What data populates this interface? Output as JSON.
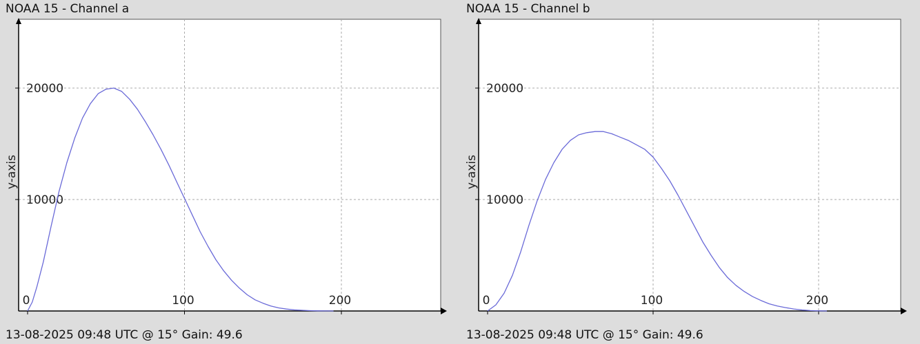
{
  "colors": {
    "background": "#dddddd",
    "plot_background": "#ffffff",
    "grid": "#aaaaaa",
    "axis": "#000000",
    "series": "#6a6ad8"
  },
  "chart_data": [
    {
      "type": "line",
      "title": "NOAA 15 - Channel a",
      "footer": "13-08-2025 09:48 UTC @ 15° Gain: 49.6",
      "xlabel": "",
      "ylabel": "y-axis",
      "xlim": [
        0,
        250
      ],
      "ylim": [
        0,
        26000
      ],
      "xticks": [
        0,
        100,
        200
      ],
      "yticks": [
        10000,
        20000
      ],
      "grid": true,
      "legend": "none",
      "series": [
        {
          "x": [
            0,
            3,
            6,
            10,
            15,
            20,
            25,
            30,
            35,
            40,
            45,
            50,
            55,
            60,
            65,
            70,
            75,
            80,
            85,
            90,
            95,
            100,
            105,
            110,
            115,
            120,
            125,
            130,
            135,
            140,
            145,
            150,
            155,
            160,
            165,
            170,
            175,
            180,
            185,
            190,
            195
          ],
          "y": [
            0,
            800,
            2200,
            4400,
            7600,
            10700,
            13300,
            15500,
            17300,
            18600,
            19500,
            19900,
            20000,
            19700,
            19000,
            18100,
            17000,
            15800,
            14500,
            13100,
            11600,
            10100,
            8600,
            7100,
            5800,
            4600,
            3600,
            2750,
            2050,
            1450,
            1000,
            700,
            450,
            280,
            170,
            100,
            60,
            30,
            15,
            5,
            0
          ]
        }
      ]
    },
    {
      "type": "line",
      "title": "NOAA 15 - Channel b",
      "footer": "13-08-2025 09:48 UTC @ 15° Gain: 49.6",
      "xlabel": "",
      "ylabel": "y-axis",
      "xlim": [
        0,
        255
      ],
      "ylim": [
        0,
        26000
      ],
      "xticks": [
        0,
        100,
        200
      ],
      "yticks": [
        10000,
        20000
      ],
      "grid": true,
      "legend": "none",
      "series": [
        {
          "x": [
            0,
            5,
            10,
            15,
            20,
            25,
            30,
            35,
            40,
            45,
            50,
            55,
            60,
            65,
            70,
            75,
            80,
            85,
            90,
            95,
            100,
            105,
            110,
            115,
            120,
            125,
            130,
            135,
            140,
            145,
            150,
            155,
            160,
            165,
            170,
            175,
            180,
            185,
            190,
            195,
            200,
            205
          ],
          "y": [
            0,
            550,
            1600,
            3200,
            5300,
            7700,
            9900,
            11800,
            13300,
            14500,
            15300,
            15800,
            16000,
            16100,
            16100,
            15900,
            15600,
            15300,
            14900,
            14500,
            13800,
            12800,
            11700,
            10400,
            9000,
            7600,
            6200,
            5000,
            3900,
            3000,
            2300,
            1750,
            1300,
            950,
            650,
            450,
            300,
            180,
            90,
            40,
            10,
            0
          ]
        }
      ]
    }
  ]
}
